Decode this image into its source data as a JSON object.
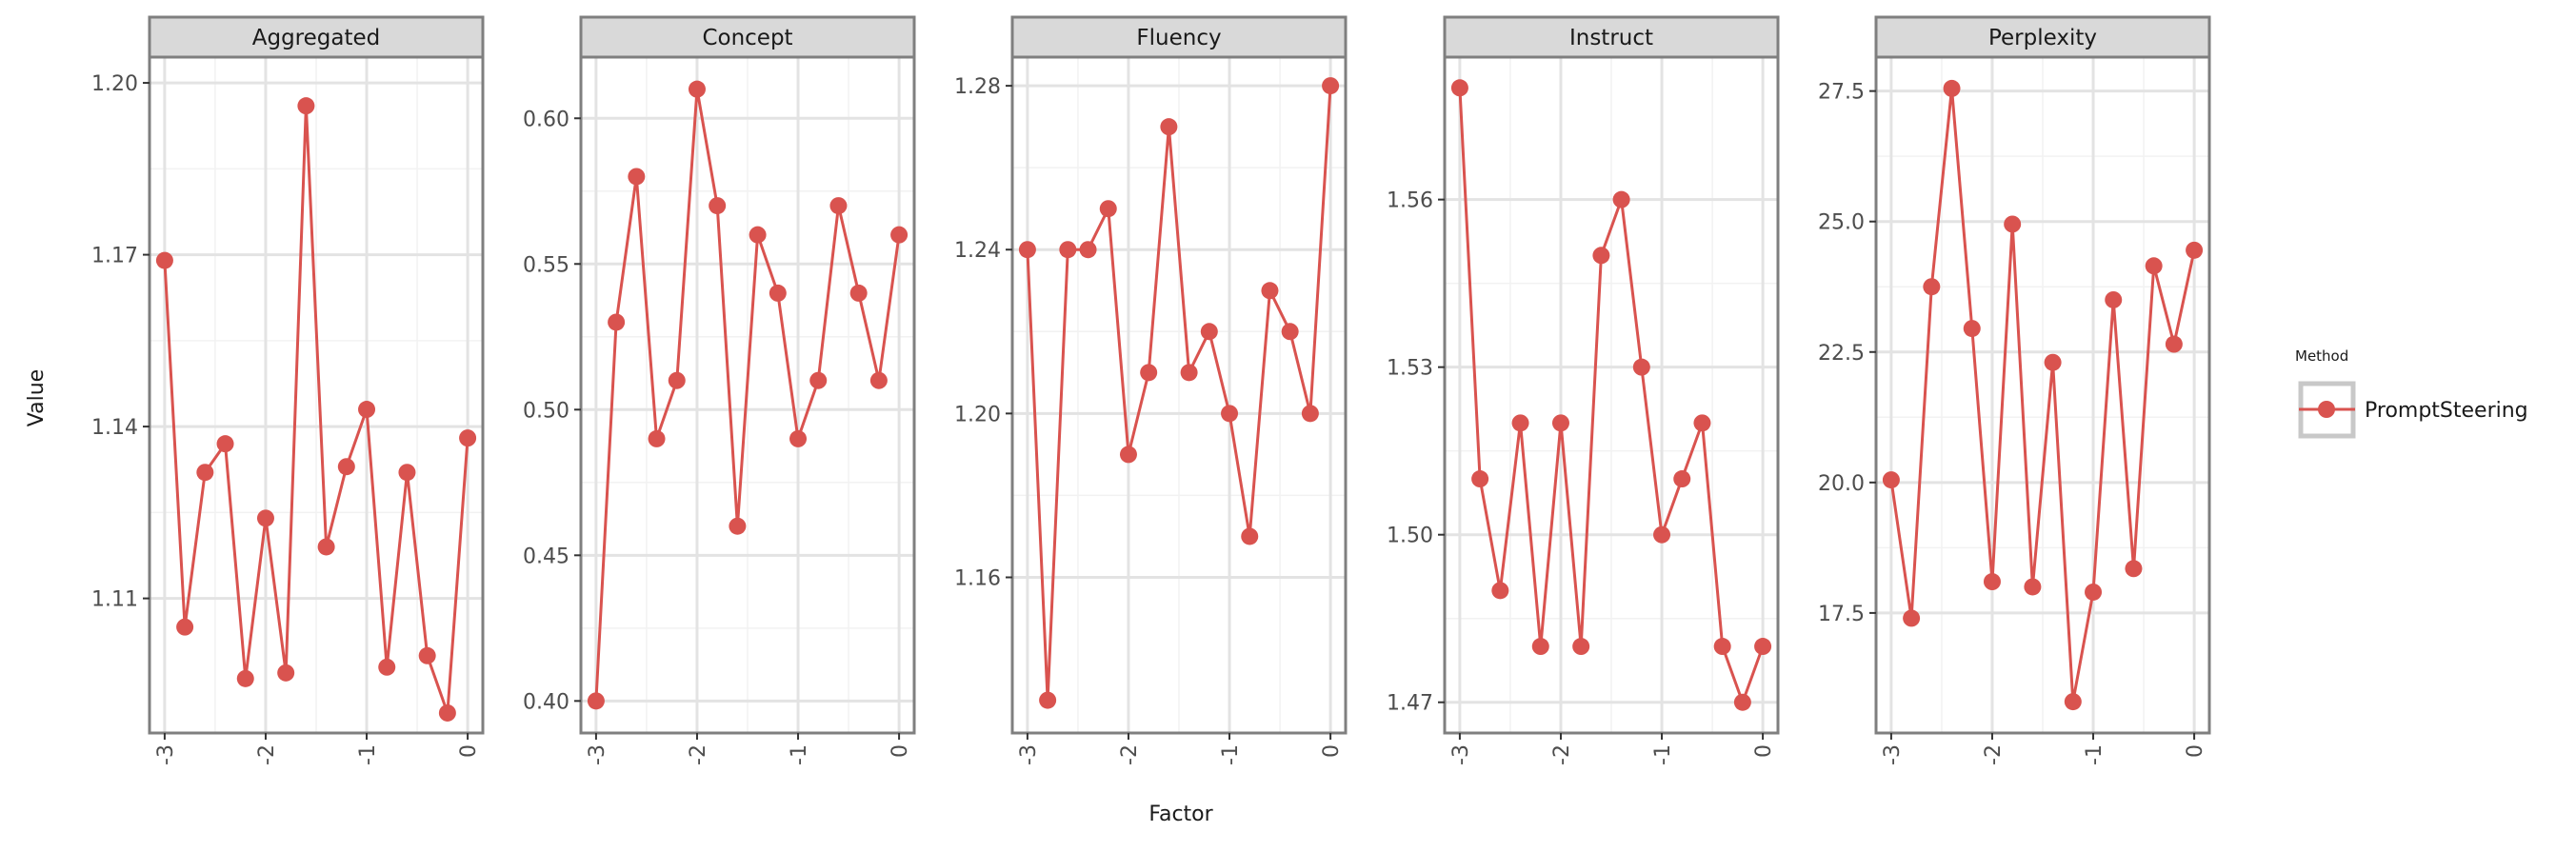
{
  "chart_data": {
    "type": "line",
    "xlabel": "Factor",
    "ylabel": "Value",
    "x": [
      -3.0,
      -2.8,
      -2.6,
      -2.4,
      -2.2,
      -2.0,
      -1.8,
      -1.6,
      -1.4,
      -1.2,
      -1.0,
      -0.8,
      -0.6,
      -0.4,
      -0.2,
      0.0
    ],
    "xlim": [
      -3.15,
      0.15
    ],
    "xticks": [
      -3,
      -2,
      -1,
      0
    ],
    "xtick_labels": [
      "-3",
      "-2",
      "-1",
      "0"
    ],
    "grid": true,
    "legend": {
      "title": "Method",
      "position": "right",
      "entries": [
        {
          "name": "PromptSteering",
          "color": "#d9534f"
        }
      ]
    },
    "series_color": "#d9534f",
    "panels": [
      {
        "title": "Aggregated",
        "series_name": "PromptSteering",
        "values": [
          1.169,
          1.105,
          1.132,
          1.137,
          1.096,
          1.124,
          1.097,
          1.196,
          1.119,
          1.133,
          1.143,
          1.098,
          1.132,
          1.1,
          1.09,
          1.138
        ],
        "ylim": [
          1.0865,
          1.2045
        ],
        "yticks": [
          1.11,
          1.14,
          1.17,
          1.2
        ],
        "ytick_labels": [
          "1.11",
          "1.14",
          "1.17",
          "1.20"
        ]
      },
      {
        "title": "Concept",
        "series_name": "PromptSteering",
        "values": [
          0.4,
          0.53,
          0.58,
          0.49,
          0.51,
          0.61,
          0.57,
          0.46,
          0.56,
          0.54,
          0.49,
          0.51,
          0.57,
          0.54,
          0.51,
          0.56
        ],
        "ylim": [
          0.389,
          0.621
        ],
        "yticks": [
          0.4,
          0.45,
          0.5,
          0.55,
          0.6
        ],
        "ytick_labels": [
          "0.40",
          "0.45",
          "0.50",
          "0.55",
          "0.60"
        ]
      },
      {
        "title": "Fluency",
        "series_name": "PromptSteering",
        "values": [
          1.24,
          1.13,
          1.24,
          1.24,
          1.25,
          1.19,
          1.21,
          1.27,
          1.21,
          1.22,
          1.2,
          1.17,
          1.23,
          1.22,
          1.2,
          1.28
        ],
        "ylim": [
          1.122,
          1.287
        ],
        "yticks": [
          1.16,
          1.2,
          1.24,
          1.28
        ],
        "ytick_labels": [
          "1.16",
          "1.20",
          "1.24",
          "1.28"
        ]
      },
      {
        "title": "Instruct",
        "series_name": "PromptSteering",
        "values": [
          1.58,
          1.51,
          1.49,
          1.52,
          1.48,
          1.52,
          1.48,
          1.55,
          1.56,
          1.53,
          1.5,
          1.51,
          1.52,
          1.48,
          1.47,
          1.48
        ],
        "ylim": [
          1.4645,
          1.5855
        ],
        "yticks": [
          1.47,
          1.5,
          1.53,
          1.56
        ],
        "ytick_labels": [
          "1.47",
          "1.50",
          "1.53",
          "1.56"
        ]
      },
      {
        "title": "Perplexity",
        "series_name": "PromptSteering",
        "values": [
          20.05,
          17.4,
          23.75,
          27.55,
          22.95,
          18.1,
          24.95,
          18.0,
          22.3,
          15.8,
          17.9,
          23.5,
          18.35,
          24.15,
          22.65,
          24.45
        ],
        "ylim": [
          15.2,
          28.15
        ],
        "yticks": [
          17.5,
          20.0,
          22.5,
          25.0,
          27.5
        ],
        "ytick_labels": [
          "17.5",
          "20.0",
          "22.5",
          "25.0",
          "27.5"
        ]
      }
    ]
  }
}
